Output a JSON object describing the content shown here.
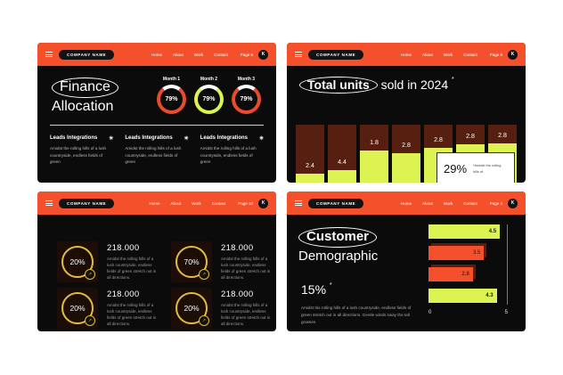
{
  "colors": {
    "accent_orange": "#f4502b",
    "slide_black": "#0b0b0b",
    "chartreuse": "#dcf351",
    "maroon": "#571f10",
    "gold_ring": "#e2be3c",
    "white": "#ffffff"
  },
  "header": {
    "company": "COMPANY NAME",
    "nav": [
      "Home",
      "About",
      "Work",
      "Contact"
    ],
    "logo": "K"
  },
  "slides": [
    {
      "page_label": "Page 6",
      "title_circled": "Finance",
      "title_line2": "Allocation",
      "gauges": [
        {
          "label": "Month 1",
          "value": "79%",
          "ring_color": "#ea4b2a"
        },
        {
          "label": "Month 2",
          "value": "79%",
          "ring_color": "#dcf351"
        },
        {
          "label": "Month 3",
          "value": "79%",
          "ring_color": "#ea4b2a"
        }
      ],
      "columns": [
        {
          "heading": "Leads Integrations",
          "icon": "✳",
          "body": "Amidst the rolling hills of a lush countryside, endless fields of green"
        },
        {
          "heading": "Leads Integrations",
          "icon": "✳",
          "body": "Amidst the rolling hills of a lush countryside, endless fields of green"
        },
        {
          "heading": "Leads Integrations",
          "icon": "✳",
          "body": "Amidst the rolling hills of a lush countryside, endless fields of green"
        }
      ]
    },
    {
      "page_label": "Page 8",
      "title_circled": "Total units",
      "title_rest": "sold in 2024",
      "asterisk": "*"
    },
    {
      "page_label": "Page 10",
      "stats": [
        {
          "percent": "20%",
          "value": "218.000",
          "badge": "↗",
          "body": "Amidst the rolling hills of a lush countryside, endless fields of green stretch out in all directions."
        },
        {
          "percent": "70%",
          "value": "218.000",
          "badge": "↗",
          "body": "Amidst the rolling hills of a lush countryside, endless fields of green stretch out in all directions."
        },
        {
          "percent": "20%",
          "value": "218.000",
          "badge": "↗",
          "body": "Amidst the rolling hills of a lush countryside, endless fields of green stretch out in all directions."
        },
        {
          "percent": "20%",
          "value": "218.000",
          "badge": "↗",
          "body": "Amidst the rolling hills of a lush countryside, endless fields of green stretch out in all directions."
        }
      ]
    },
    {
      "page_label": "Page 4",
      "title_circled": "Customer",
      "title_line2": "Demographic",
      "stat_value": "15%",
      "asterisk": "*",
      "body": "Amidst the rolling hills of a lush countryside, endless fields of green stretch out in all directions. Gentle winds sway the tall grasses."
    }
  ],
  "chart_data": [
    {
      "type": "bar",
      "title": "Total units sold in 2024",
      "categories": [
        "",
        "",
        "",
        "",
        "",
        "",
        ""
      ],
      "values": [
        2.4,
        4.4,
        1.8,
        2.8,
        2.8,
        2.8,
        2.8
      ],
      "filled_fraction": [
        0.31,
        0.36,
        0.63,
        0.59,
        0.67,
        0.72,
        0.74
      ],
      "bar_top_color": "#571f10",
      "bar_fill_color": "#dcf351",
      "annotation": {
        "value": "29%",
        "note": "*Amidst the rolling hills of"
      }
    },
    {
      "type": "bar-horizontal",
      "title": "Customer Demographic",
      "values": [
        4.5,
        3.5,
        2.8,
        4.3
      ],
      "bar_styles": [
        "yellow",
        "orange",
        "orange",
        "yellow"
      ],
      "xmin": 0,
      "xmax": 5,
      "x_ticks": [
        "0",
        "5"
      ]
    }
  ]
}
